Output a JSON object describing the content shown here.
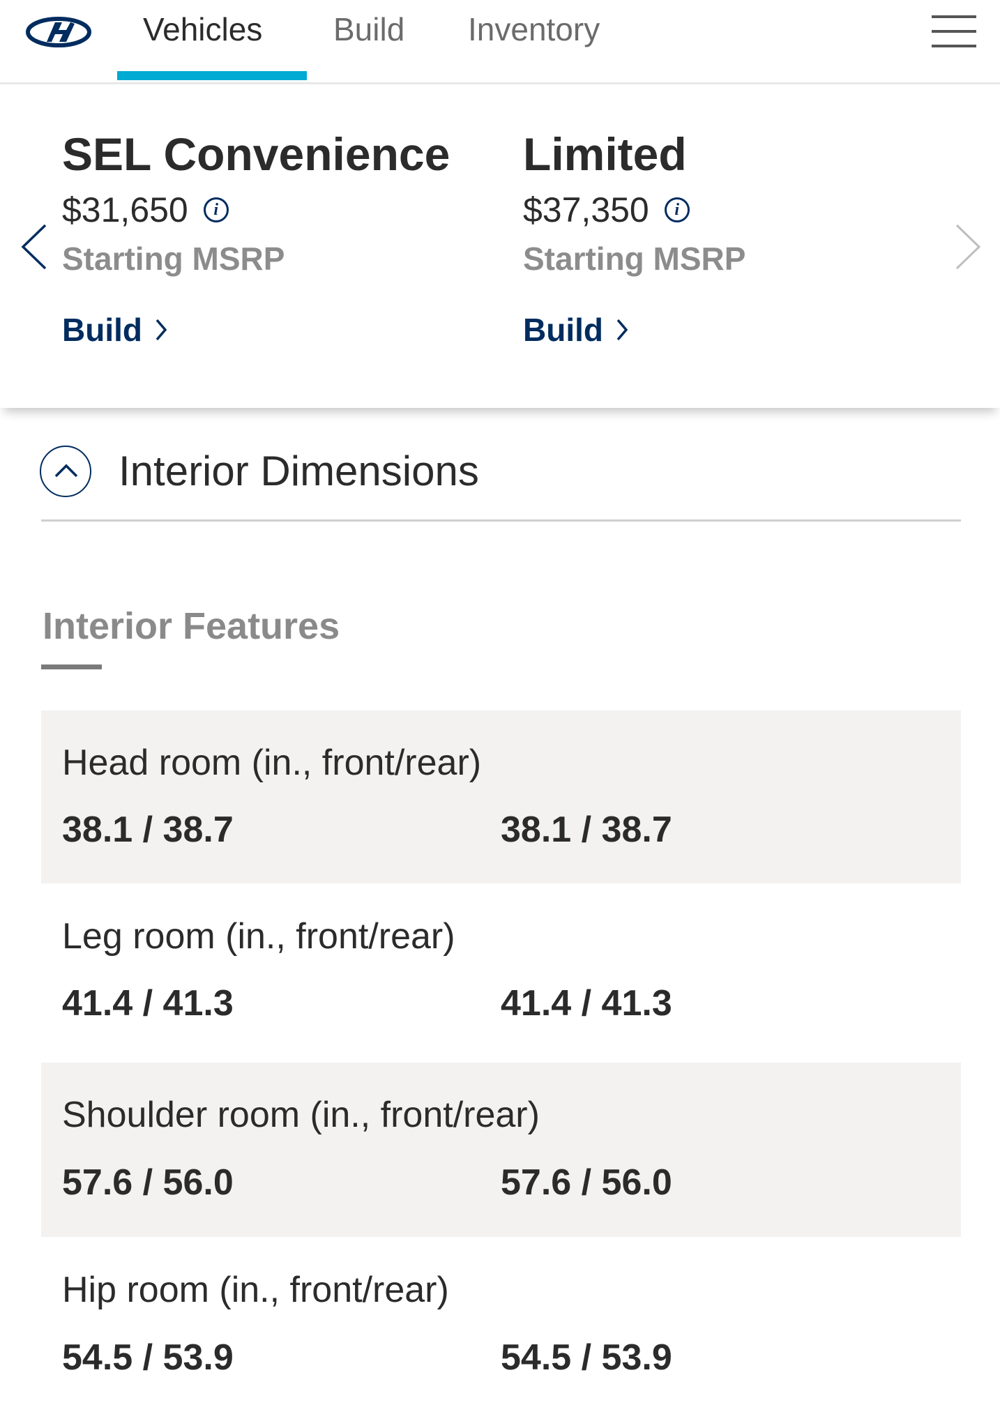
{
  "nav": {
    "logo": "hyundai-logo",
    "tabs": [
      {
        "label": "Vehicles",
        "active": true
      },
      {
        "label": "Build",
        "active": false
      },
      {
        "label": "Inventory",
        "active": false
      }
    ],
    "accent_color": "#00aad2"
  },
  "trims": [
    {
      "name": "SEL Convenience",
      "price": "$31,650",
      "price_note": "Starting MSRP",
      "build_label": "Build"
    },
    {
      "name": "Limited",
      "price": "$37,350",
      "price_note": "Starting MSRP",
      "build_label": "Build"
    }
  ],
  "accordion": {
    "title": "Interior Dimensions",
    "expanded": true
  },
  "section": {
    "title": "Interior Features",
    "rows": [
      {
        "label": "Head room (in., front/rear)",
        "values": [
          "38.1 / 38.7",
          "38.1 / 38.7"
        ]
      },
      {
        "label": "Leg room (in., front/rear)",
        "values": [
          "41.4 / 41.3",
          "41.4 / 41.3"
        ]
      },
      {
        "label": "Shoulder room (in., front/rear)",
        "values": [
          "57.6 / 56.0",
          "57.6 / 56.0"
        ]
      },
      {
        "label": "Hip room (in., front/rear)",
        "values": [
          "54.5 / 53.9",
          "54.5 / 53.9"
        ]
      }
    ]
  },
  "colors": {
    "brand_navy": "#002c5f",
    "row_shade": "#f3f2f0"
  }
}
